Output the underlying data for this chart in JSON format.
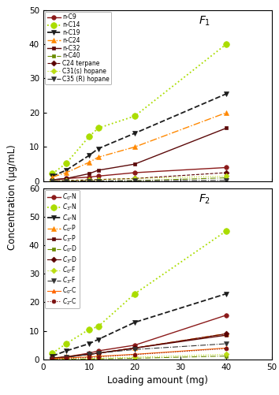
{
  "x": [
    2,
    5,
    10,
    12,
    20,
    40
  ],
  "F1": {
    "title": "$\\mathit{F}_1$",
    "series": [
      {
        "label": "n-C9",
        "color": "#8B1A1A",
        "marker": "o",
        "ls": "-",
        "lw": 1.0,
        "ms": 4.0,
        "y": [
          0.4,
          0.8,
          1.2,
          1.5,
          2.5,
          4.0
        ]
      },
      {
        "label": "n-C14",
        "color": "#AADD00",
        "marker": "o",
        "ls": ":",
        "lw": 1.3,
        "ms": 5.5,
        "y": [
          2.2,
          5.2,
          13.0,
          15.5,
          19.0,
          40.0
        ]
      },
      {
        "label": "n-C19",
        "color": "#1C1C1C",
        "marker": "v",
        "ls": "--",
        "lw": 1.3,
        "ms": 5.0,
        "y": [
          1.5,
          3.2,
          7.5,
          9.5,
          14.0,
          25.5
        ]
      },
      {
        "label": "n-C24",
        "color": "#FF8800",
        "marker": "^",
        "ls": "-.",
        "lw": 1.0,
        "ms": 4.5,
        "y": [
          1.2,
          2.5,
          5.5,
          7.0,
          10.0,
          20.0
        ]
      },
      {
        "label": "n-C32",
        "color": "#5C0A0A",
        "marker": "s",
        "ls": "-",
        "lw": 1.0,
        "ms": 3.5,
        "y": [
          0.4,
          0.8,
          2.2,
          3.2,
          5.0,
          15.5
        ]
      },
      {
        "label": "n-C40",
        "color": "#6B8C00",
        "marker": "s",
        "ls": "-.",
        "lw": 0.8,
        "ms": 3.5,
        "y": [
          0.05,
          0.05,
          0.08,
          0.08,
          0.15,
          1.0
        ]
      },
      {
        "label": "C24 terpane",
        "color": "#5A0000",
        "marker": "D",
        "ls": "--",
        "lw": 0.8,
        "ms": 3.5,
        "y": [
          0.1,
          0.2,
          0.4,
          0.5,
          0.8,
          2.5
        ]
      },
      {
        "label": "C31(s) hopane",
        "color": "#BBDD11",
        "marker": "D",
        "ls": ":",
        "lw": 0.8,
        "ms": 3.5,
        "y": [
          0.15,
          0.22,
          0.4,
          0.5,
          0.8,
          1.5
        ]
      },
      {
        "label": "C35 (R) hopane",
        "color": "#333333",
        "marker": "v",
        "ls": "-.",
        "lw": 0.8,
        "ms": 4.0,
        "y": [
          0.03,
          0.04,
          0.08,
          0.08,
          0.15,
          0.25
        ]
      }
    ],
    "ylim": [
      0,
      50
    ],
    "yticks": [
      0,
      10,
      20,
      30,
      40,
      50
    ]
  },
  "F2": {
    "title": "$\\mathit{F}_2$",
    "series": [
      {
        "label": "$C_0$-N",
        "color": "#8B1A1A",
        "marker": "o",
        "ls": "-",
        "lw": 1.0,
        "ms": 4.0,
        "y": [
          0.4,
          0.9,
          2.2,
          3.0,
          5.0,
          15.5
        ]
      },
      {
        "label": "$C_3$-N",
        "color": "#AADD00",
        "marker": "o",
        "ls": ":",
        "lw": 1.3,
        "ms": 5.5,
        "y": [
          2.2,
          5.5,
          10.5,
          11.5,
          23.0,
          45.0
        ]
      },
      {
        "label": "$C_4$-N",
        "color": "#1C1C1C",
        "marker": "v",
        "ls": "--",
        "lw": 1.3,
        "ms": 5.0,
        "y": [
          1.2,
          3.0,
          5.5,
          7.0,
          13.0,
          23.0
        ]
      },
      {
        "label": "$C_0$-P",
        "color": "#FF8800",
        "marker": "^",
        "ls": "-.",
        "lw": 1.0,
        "ms": 4.5,
        "y": [
          0.5,
          1.0,
          1.8,
          2.2,
          4.0,
          9.0
        ]
      },
      {
        "label": "$C_3$-P",
        "color": "#5C0A0A",
        "marker": "s",
        "ls": "-",
        "lw": 1.0,
        "ms": 3.5,
        "y": [
          0.4,
          0.9,
          1.8,
          2.2,
          4.0,
          8.5
        ]
      },
      {
        "label": "$C_0$-D",
        "color": "#6B8C00",
        "marker": "s",
        "ls": "-.",
        "lw": 0.8,
        "ms": 3.5,
        "y": [
          0.05,
          0.08,
          0.15,
          0.2,
          0.4,
          1.2
        ]
      },
      {
        "label": "$C_3$-D",
        "color": "#5A0000",
        "marker": "D",
        "ls": "-",
        "lw": 0.8,
        "ms": 3.5,
        "y": [
          0.4,
          0.9,
          1.8,
          2.2,
          4.0,
          9.0
        ]
      },
      {
        "label": "$C_0$-F",
        "color": "#BBDD11",
        "marker": "D",
        "ls": ":",
        "lw": 0.8,
        "ms": 3.5,
        "y": [
          0.08,
          0.15,
          0.3,
          0.4,
          0.8,
          1.8
        ]
      },
      {
        "label": "$C_3$-F",
        "color": "#333333",
        "marker": "v",
        "ls": "-.",
        "lw": 0.8,
        "ms": 4.0,
        "y": [
          0.3,
          0.7,
          1.8,
          2.2,
          3.5,
          5.5
        ]
      },
      {
        "label": "$C_0$-C",
        "color": "#FF6600",
        "marker": "^",
        "ls": "-",
        "lw": 0.8,
        "ms": 3.5,
        "y": [
          0.3,
          0.5,
          0.9,
          1.1,
          1.8,
          4.0
        ]
      },
      {
        "label": "$C_2$-C",
        "color": "#7B1010",
        "marker": "o",
        "ls": ":",
        "lw": 0.8,
        "ms": 3.5,
        "y": [
          0.2,
          0.4,
          0.7,
          0.9,
          1.7,
          3.8
        ]
      }
    ],
    "ylim": [
      0,
      60
    ],
    "yticks": [
      0,
      10,
      20,
      30,
      40,
      50,
      60
    ]
  },
  "xlabel": "Loading amount (mg)",
  "ylabel": "Concentration (μg/mL)",
  "xticks": [
    0,
    10,
    20,
    30,
    40,
    50
  ]
}
